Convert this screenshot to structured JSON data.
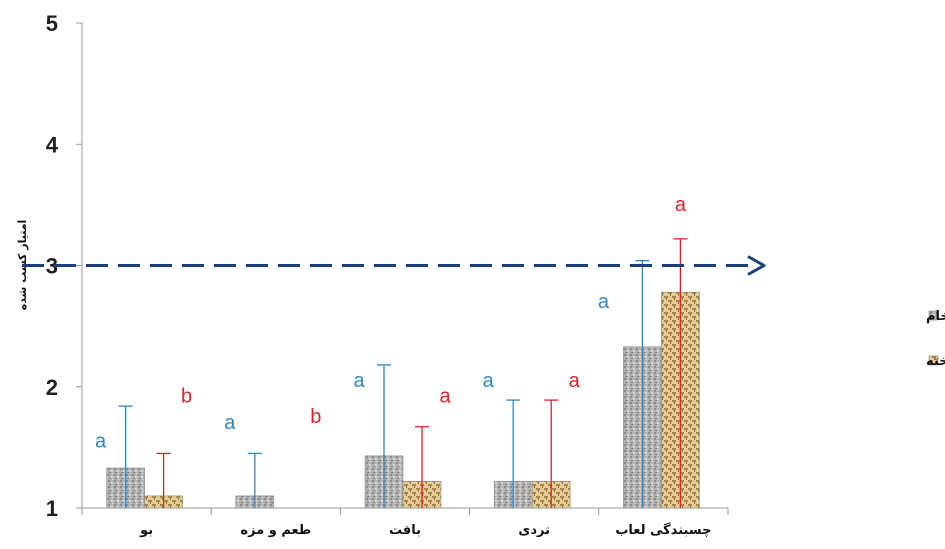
{
  "chart_data": {
    "type": "bar",
    "ylabel": "امتیاز کسب شده",
    "ylim": [
      1,
      5
    ],
    "yticks": [
      "1",
      "2",
      "3",
      "4",
      "5"
    ],
    "categories": [
      "بو",
      "طعم و مزه",
      "بافت",
      "تردی",
      "چسبندگی لعاب"
    ],
    "series": [
      {
        "name": "کیلکای روکش شده خام",
        "color": "#a9a9a9",
        "values": [
          1.33,
          1.1,
          1.43,
          1.22,
          2.33
        ],
        "error_high": [
          1.84,
          1.45,
          2.18,
          1.89,
          3.04
        ],
        "error_color": "#2f86c8",
        "letters": [
          "a",
          "a",
          "a",
          "a",
          "a"
        ],
        "letter_color": "#2f86c8"
      },
      {
        "name": "کیلکای روکش شده پخته",
        "color": "#d8bf85",
        "values": [
          1.1,
          null,
          1.22,
          1.22,
          2.78
        ],
        "error_high": [
          1.45,
          null,
          1.67,
          1.89,
          3.22
        ],
        "error_color": "#d9232a",
        "letters": [
          "b",
          "b",
          "a",
          "a",
          "a"
        ],
        "letter_color": "#d9232a"
      }
    ],
    "reference_line": {
      "value": 3,
      "style": "dashed-arrow",
      "color": "#1b3f7a"
    },
    "legend": "right",
    "grid": false
  }
}
